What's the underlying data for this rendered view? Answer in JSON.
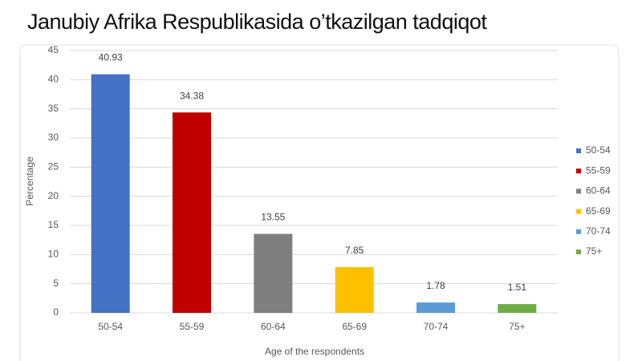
{
  "chart_data": {
    "type": "bar",
    "title": "Janubiy Afrika Respublikasida o’tkazilgan tadqiqot",
    "categories": [
      "50-54",
      "55-59",
      "60-64",
      "65-69",
      "70-74",
      "75+"
    ],
    "values": [
      40.93,
      34.38,
      13.55,
      7.85,
      1.78,
      1.51
    ],
    "colors": [
      "#4472c4",
      "#c00000",
      "#7f7f7f",
      "#ffc000",
      "#5b9bd5",
      "#70ad47"
    ],
    "x_label": "Age of the respondents",
    "y_label": "Percentage",
    "ylim": [
      0,
      45
    ],
    "yticks": [
      0,
      5,
      10,
      15,
      20,
      25,
      30,
      35,
      40,
      45
    ],
    "grid": true,
    "legend": "right"
  }
}
